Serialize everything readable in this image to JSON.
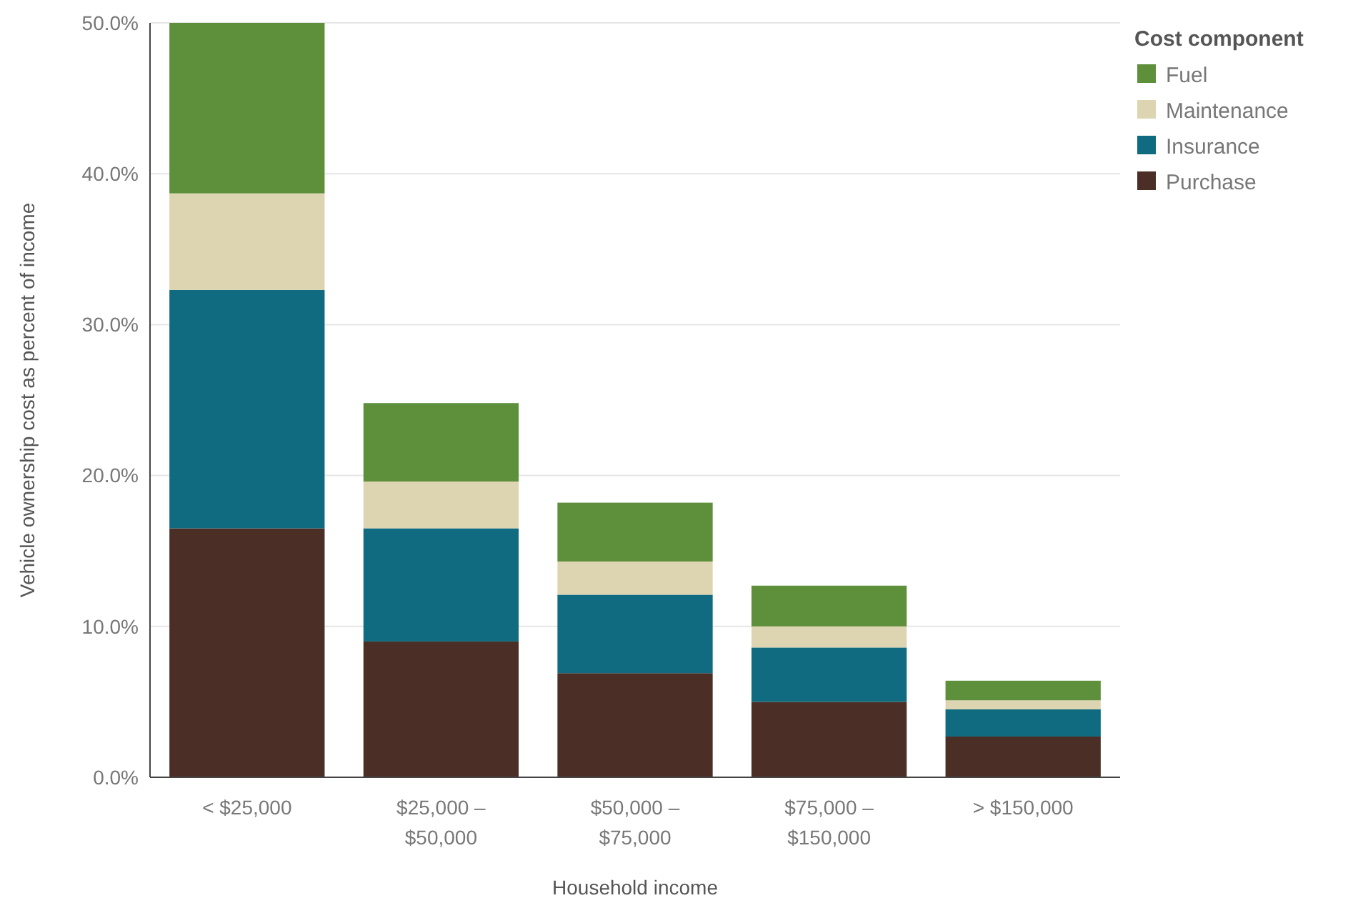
{
  "chart_data": {
    "type": "bar",
    "stacked": true,
    "xlabel": "Household income",
    "ylabel": "Vehicle ownership cost as percent of income",
    "legend_title": "Cost component",
    "categories": [
      "< $25,000",
      "$25,000 –\n$50,000",
      "$50,000 –\n$75,000",
      "$75,000 –\n$150,000",
      "> $150,000"
    ],
    "series": [
      {
        "name": "Purchase",
        "color": "#4b2f26",
        "values": [
          16.5,
          9.0,
          6.9,
          5.0,
          2.7
        ]
      },
      {
        "name": "Insurance",
        "color": "#106b80",
        "values": [
          15.8,
          7.5,
          5.2,
          3.6,
          1.8
        ]
      },
      {
        "name": "Maintenance",
        "color": "#ddd5b2",
        "values": [
          6.4,
          3.1,
          2.2,
          1.4,
          0.6
        ]
      },
      {
        "name": "Fuel",
        "color": "#5e8f3b",
        "values": [
          11.3,
          5.2,
          3.9,
          2.7,
          1.3
        ]
      }
    ],
    "ylim": [
      0,
      50
    ],
    "yticks": [
      {
        "value": 0,
        "label": "0.0%"
      },
      {
        "value": 10,
        "label": "10.0%"
      },
      {
        "value": 20,
        "label": "20.0%"
      },
      {
        "value": 30,
        "label": "30.0%"
      },
      {
        "value": 40,
        "label": "40.0%"
      },
      {
        "value": 50,
        "label": "50.0%"
      }
    ],
    "grid": "y",
    "legend": "top right"
  }
}
